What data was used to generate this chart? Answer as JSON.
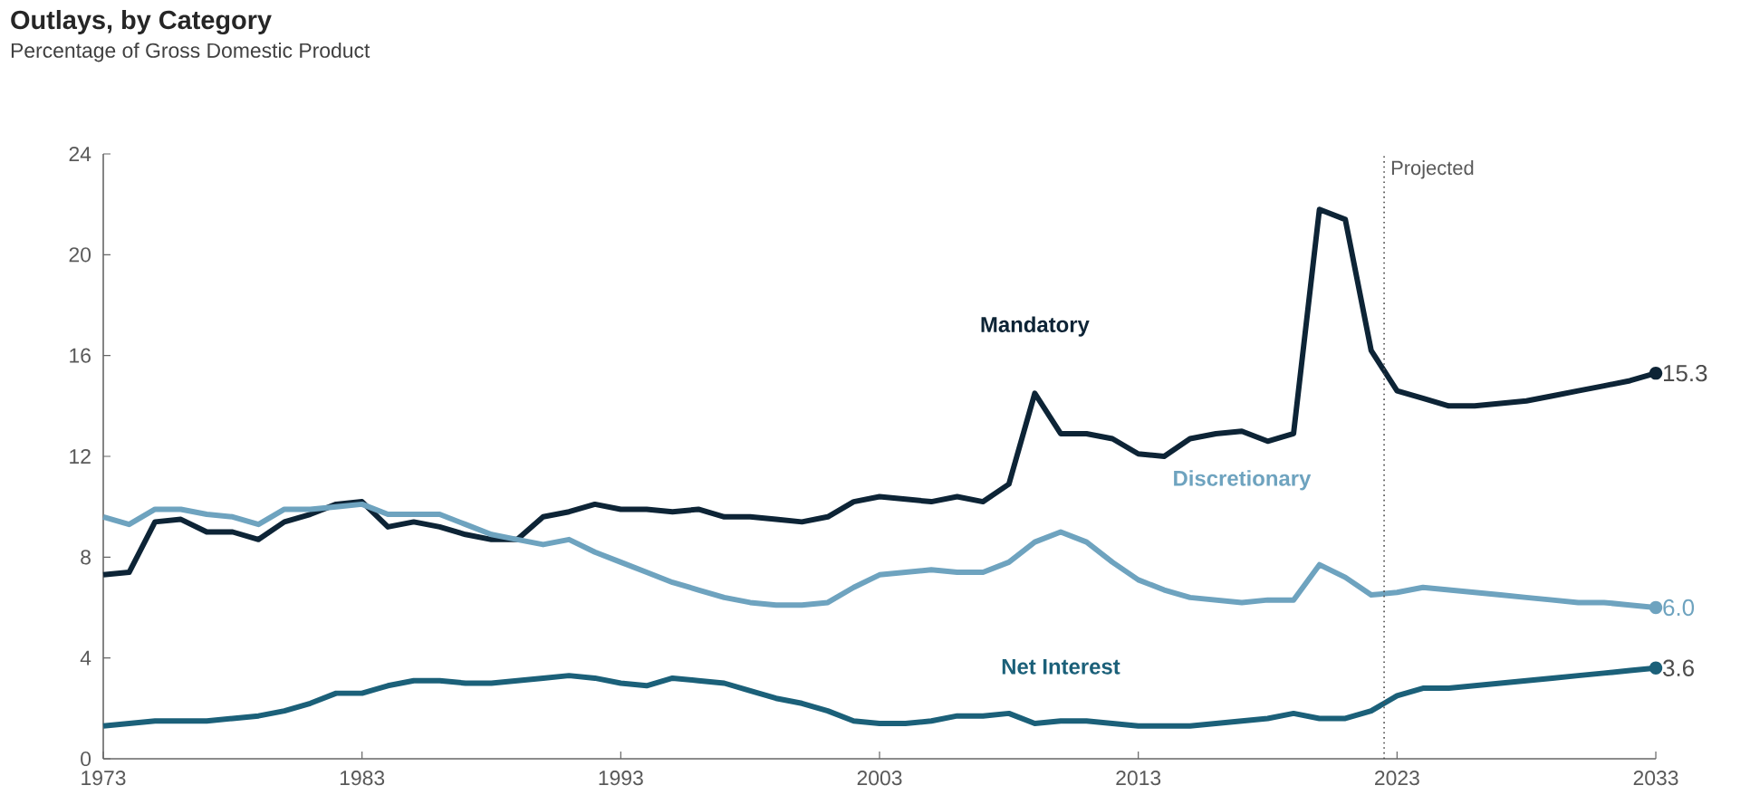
{
  "chart_data": {
    "type": "line",
    "title": "Outlays, by Category",
    "subtitle": "Percentage of Gross Domestic Product",
    "x": [
      1973,
      1974,
      1975,
      1976,
      1977,
      1978,
      1979,
      1980,
      1981,
      1982,
      1983,
      1984,
      1985,
      1986,
      1987,
      1988,
      1989,
      1990,
      1991,
      1992,
      1993,
      1994,
      1995,
      1996,
      1997,
      1998,
      1999,
      2000,
      2001,
      2002,
      2003,
      2004,
      2005,
      2006,
      2007,
      2008,
      2009,
      2010,
      2011,
      2012,
      2013,
      2014,
      2015,
      2016,
      2017,
      2018,
      2019,
      2020,
      2021,
      2022,
      2023,
      2024,
      2025,
      2026,
      2027,
      2028,
      2029,
      2030,
      2031,
      2032,
      2033
    ],
    "series": [
      {
        "name": "Mandatory",
        "color": "#0d2436",
        "values": [
          7.3,
          7.4,
          9.4,
          9.5,
          9.0,
          9.0,
          8.7,
          9.4,
          9.7,
          10.1,
          10.2,
          9.2,
          9.4,
          9.2,
          8.9,
          8.7,
          8.7,
          9.6,
          9.8,
          10.1,
          9.9,
          9.9,
          9.8,
          9.9,
          9.6,
          9.6,
          9.5,
          9.4,
          9.6,
          10.2,
          10.4,
          10.3,
          10.2,
          10.4,
          10.2,
          10.9,
          14.5,
          12.9,
          12.9,
          12.7,
          12.1,
          12.0,
          12.7,
          12.9,
          13.0,
          12.6,
          12.9,
          21.8,
          21.4,
          16.2,
          14.6,
          14.3,
          14.0,
          14.0,
          14.1,
          14.2,
          14.4,
          14.6,
          14.8,
          15.0,
          15.3
        ],
        "value_labels": [
          null,
          null,
          null,
          null,
          null,
          null,
          null,
          null,
          null,
          null,
          null,
          null,
          null,
          null,
          null,
          null,
          null,
          null,
          null,
          null,
          null,
          null,
          null,
          null,
          null,
          null,
          null,
          null,
          null,
          null,
          null,
          null,
          null,
          null,
          null,
          null,
          null,
          null,
          null,
          null,
          null,
          null,
          null,
          null,
          null,
          null,
          null,
          null,
          null,
          null,
          null,
          null,
          null,
          null,
          null,
          null,
          null,
          null,
          null,
          null,
          "15.3"
        ]
      },
      {
        "name": "Discretionary",
        "color": "#6ea3bf",
        "values": [
          9.6,
          9.3,
          9.9,
          9.9,
          9.7,
          9.6,
          9.3,
          9.9,
          9.9,
          10.0,
          10.1,
          9.7,
          9.7,
          9.7,
          9.3,
          8.9,
          8.7,
          8.5,
          8.7,
          8.2,
          7.8,
          7.4,
          7.0,
          6.7,
          6.4,
          6.2,
          6.1,
          6.1,
          6.2,
          6.8,
          7.3,
          7.4,
          7.5,
          7.4,
          7.4,
          7.8,
          8.6,
          9.0,
          8.6,
          7.8,
          7.1,
          6.7,
          6.4,
          6.3,
          6.2,
          6.3,
          6.3,
          7.7,
          7.2,
          6.5,
          6.6,
          6.8,
          6.7,
          6.6,
          6.5,
          6.4,
          6.3,
          6.2,
          6.2,
          6.1,
          6.0
        ],
        "value_labels": [
          null,
          null,
          null,
          null,
          null,
          null,
          null,
          null,
          null,
          null,
          null,
          null,
          null,
          null,
          null,
          null,
          null,
          null,
          null,
          null,
          null,
          null,
          null,
          null,
          null,
          null,
          null,
          null,
          null,
          null,
          null,
          null,
          null,
          null,
          null,
          null,
          null,
          null,
          null,
          null,
          null,
          null,
          null,
          null,
          null,
          null,
          null,
          null,
          null,
          null,
          null,
          null,
          null,
          null,
          null,
          null,
          null,
          null,
          null,
          null,
          "6.0"
        ]
      },
      {
        "name": "Net Interest",
        "color": "#1b6079",
        "values": [
          1.3,
          1.4,
          1.5,
          1.5,
          1.5,
          1.6,
          1.7,
          1.9,
          2.2,
          2.6,
          2.6,
          2.9,
          3.1,
          3.1,
          3.0,
          3.0,
          3.1,
          3.2,
          3.3,
          3.2,
          3.0,
          2.9,
          3.2,
          3.1,
          3.0,
          2.7,
          2.4,
          2.2,
          1.9,
          1.5,
          1.4,
          1.4,
          1.5,
          1.7,
          1.7,
          1.8,
          1.4,
          1.5,
          1.5,
          1.4,
          1.3,
          1.3,
          1.3,
          1.4,
          1.5,
          1.6,
          1.8,
          1.6,
          1.6,
          1.9,
          2.5,
          2.8,
          2.8,
          2.9,
          3.0,
          3.1,
          3.2,
          3.3,
          3.4,
          3.5,
          3.6
        ],
        "value_labels": [
          null,
          null,
          null,
          null,
          null,
          null,
          null,
          null,
          null,
          null,
          null,
          null,
          null,
          null,
          null,
          null,
          null,
          null,
          null,
          null,
          null,
          null,
          null,
          null,
          null,
          null,
          null,
          null,
          null,
          null,
          null,
          null,
          null,
          null,
          null,
          null,
          null,
          null,
          null,
          null,
          null,
          null,
          null,
          null,
          null,
          null,
          null,
          null,
          null,
          null,
          null,
          null,
          null,
          null,
          null,
          null,
          null,
          null,
          null,
          null,
          "3.6"
        ]
      }
    ],
    "xlim": [
      1973,
      2033
    ],
    "xticks": [
      1973,
      1983,
      1993,
      2003,
      2013,
      2023,
      2033
    ],
    "ylim": [
      0,
      24
    ],
    "yticks": [
      0,
      4,
      8,
      12,
      16,
      20,
      24
    ],
    "ref_lines": [
      {
        "axis": "x",
        "value": 2022.5,
        "label": "Projected",
        "line_style": "dotted"
      }
    ],
    "grid": false,
    "legend": false,
    "line_style": "solid"
  }
}
